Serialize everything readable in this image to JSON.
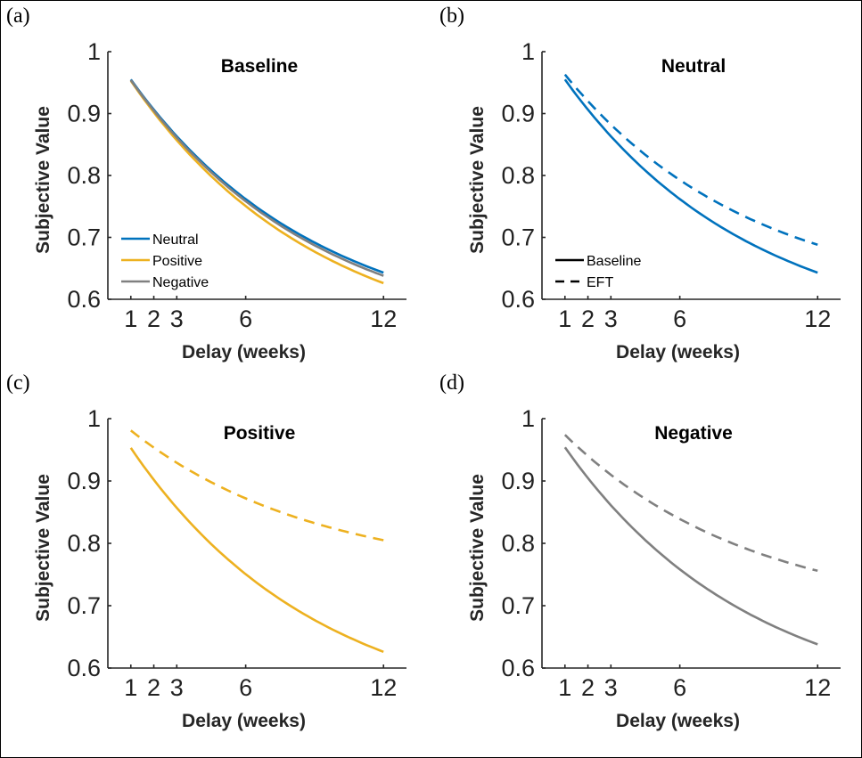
{
  "chart_data": [
    {
      "panel": "(a)",
      "type": "line",
      "title": "Baseline",
      "xlabel": "Delay (weeks)",
      "ylabel": "Subjective Value",
      "xticks": [
        1,
        2,
        3,
        6,
        12
      ],
      "yticks": [
        0.6,
        0.7,
        0.8,
        0.9,
        1
      ],
      "xlim": [
        0,
        13
      ],
      "ylim": [
        0.6,
        1
      ],
      "grid": false,
      "legend": {
        "position": "bottom-left",
        "entries": [
          "Neutral",
          "Positive",
          "Negative"
        ]
      },
      "series": [
        {
          "name": "Neutral",
          "color": "#0072BD",
          "dash": "solid",
          "x": [
            1,
            12
          ],
          "y": [
            0.955,
            0.643
          ]
        },
        {
          "name": "Positive",
          "color": "#EDB120",
          "dash": "solid",
          "x": [
            1,
            12
          ],
          "y": [
            0.953,
            0.626
          ]
        },
        {
          "name": "Negative",
          "color": "#808080",
          "dash": "solid",
          "x": [
            1,
            12
          ],
          "y": [
            0.954,
            0.638
          ]
        }
      ]
    },
    {
      "panel": "(b)",
      "type": "line",
      "title": "Neutral",
      "xlabel": "Delay (weeks)",
      "ylabel": "Subjective Value",
      "xticks": [
        1,
        2,
        3,
        6,
        12
      ],
      "yticks": [
        0.6,
        0.7,
        0.8,
        0.9,
        1
      ],
      "xlim": [
        0,
        13
      ],
      "ylim": [
        0.6,
        1
      ],
      "grid": false,
      "legend": {
        "position": "bottom-left",
        "entries": [
          "Baseline",
          "EFT"
        ]
      },
      "series": [
        {
          "name": "Baseline",
          "color": "#0072BD",
          "dash": "solid",
          "x": [
            1,
            12
          ],
          "y": [
            0.955,
            0.643
          ]
        },
        {
          "name": "EFT",
          "color": "#0072BD",
          "dash": "dashed",
          "x": [
            1,
            12
          ],
          "y": [
            0.963,
            0.688
          ]
        }
      ]
    },
    {
      "panel": "(c)",
      "type": "line",
      "title": "Positive",
      "xlabel": "Delay (weeks)",
      "ylabel": "Subjective Value",
      "xticks": [
        1,
        2,
        3,
        6,
        12
      ],
      "yticks": [
        0.6,
        0.7,
        0.8,
        0.9,
        1
      ],
      "xlim": [
        0,
        13
      ],
      "ylim": [
        0.6,
        1
      ],
      "grid": false,
      "legend": null,
      "series": [
        {
          "name": "",
          "color": "#EDB120",
          "dash": "solid",
          "x": [
            1,
            12
          ],
          "y": [
            0.953,
            0.626
          ]
        },
        {
          "name": "",
          "color": "#EDB120",
          "dash": "dashed",
          "x": [
            1,
            12
          ],
          "y": [
            0.981,
            0.805
          ]
        }
      ]
    },
    {
      "panel": "(d)",
      "type": "line",
      "title": "Negative",
      "xlabel": "Delay (weeks)",
      "ylabel": "Subjective Value",
      "xticks": [
        1,
        2,
        3,
        6,
        12
      ],
      "yticks": [
        0.6,
        0.7,
        0.8,
        0.9,
        1
      ],
      "xlim": [
        0,
        13
      ],
      "ylim": [
        0.6,
        1
      ],
      "grid": false,
      "legend": null,
      "series": [
        {
          "name": "",
          "color": "#808080",
          "dash": "solid",
          "x": [
            1,
            12
          ],
          "y": [
            0.954,
            0.638
          ]
        },
        {
          "name": "",
          "color": "#808080",
          "dash": "dashed",
          "x": [
            1,
            12
          ],
          "y": [
            0.974,
            0.756
          ]
        }
      ]
    }
  ]
}
